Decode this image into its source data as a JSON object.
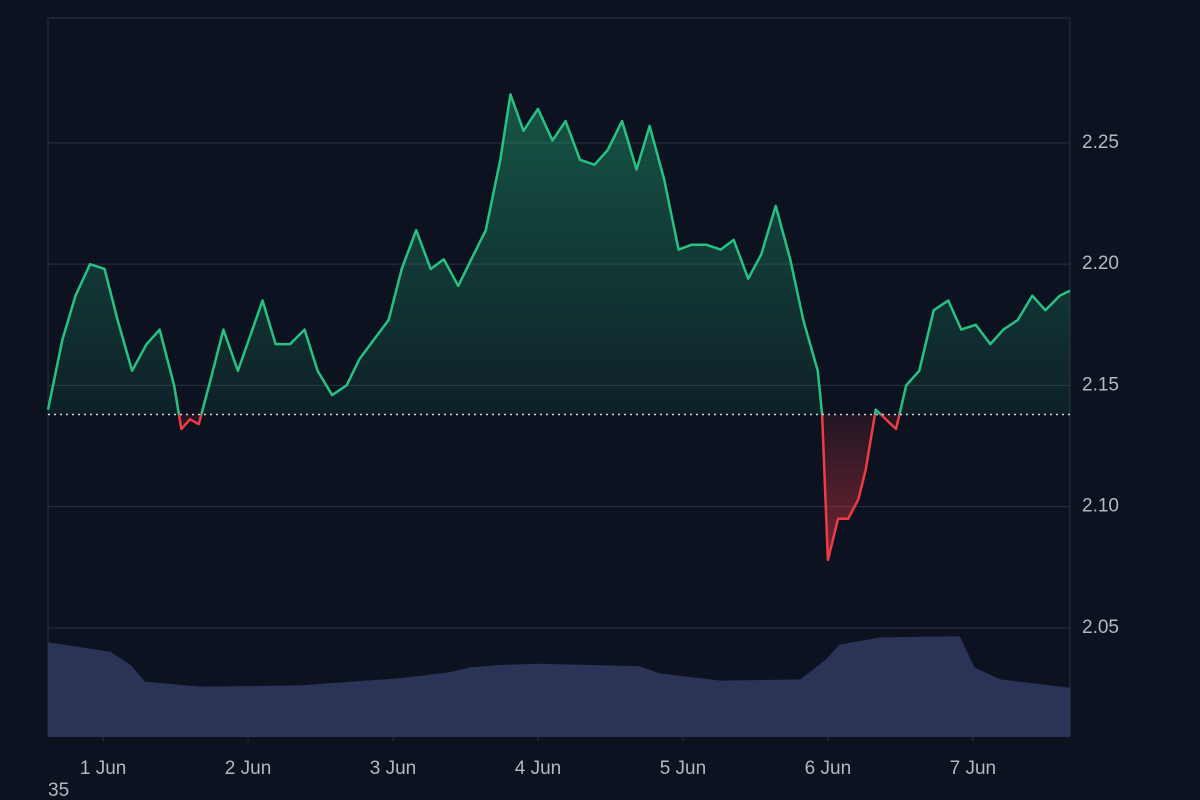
{
  "chart_data": {
    "type": "baseline",
    "xlim": [
      -0.38,
      6.67
    ],
    "xticks": [
      {
        "value": 0,
        "label": "1 Jun"
      },
      {
        "value": 1,
        "label": "2 Jun"
      },
      {
        "value": 2,
        "label": "3 Jun"
      },
      {
        "value": 3,
        "label": "4 Jun"
      },
      {
        "value": 4,
        "label": "5 Jun"
      },
      {
        "value": 5,
        "label": "6 Jun"
      },
      {
        "value": 6,
        "label": "7 Jun"
      }
    ],
    "ylim": [
      2.005,
      2.3015
    ],
    "yticks": [
      2.05,
      {
        "value": 2.1,
        "label": "2.10"
      },
      2.15,
      {
        "value": 2.2,
        "label": "2.20"
      },
      2.25
    ],
    "y2lim": [
      0,
      100
    ],
    "baseline": 2.138,
    "grid": true,
    "annotation": "35",
    "series": [
      {
        "color": "#26c281",
        "below_color": "#ef3b46",
        "x": [
          -0.38,
          -0.28,
          -0.19,
          -0.09,
          0.01,
          0.1,
          0.2,
          0.3,
          0.39,
          0.49,
          0.54,
          0.6,
          0.66,
          0.74,
          0.83,
          0.93,
          1.03,
          1.1,
          1.19,
          1.29,
          1.39,
          1.48,
          1.58,
          1.68,
          1.77,
          1.87,
          1.97,
          2.06,
          2.16,
          2.26,
          2.35,
          2.45,
          2.54,
          2.64,
          2.74,
          2.81,
          2.9,
          3.0,
          3.1,
          3.19,
          3.29,
          3.39,
          3.48,
          3.58,
          3.68,
          3.77,
          3.87,
          3.97,
          4.06,
          4.16,
          4.26,
          4.35,
          4.45,
          4.54,
          4.64,
          4.74,
          4.83,
          4.93,
          4.96,
          5.0,
          5.07,
          5.14,
          5.21,
          5.26,
          5.33,
          5.4,
          5.47,
          5.54,
          5.63,
          5.73,
          5.83,
          5.92,
          6.02,
          6.12,
          6.21,
          6.31,
          6.41,
          6.5,
          6.6,
          6.67
        ],
        "values": [
          2.14,
          2.169,
          2.187,
          2.2,
          2.198,
          2.177,
          2.156,
          2.167,
          2.173,
          2.15,
          2.132,
          2.136,
          2.134,
          2.152,
          2.173,
          2.156,
          2.173,
          2.185,
          2.167,
          2.167,
          2.173,
          2.156,
          2.146,
          2.15,
          2.161,
          2.169,
          2.177,
          2.198,
          2.214,
          2.198,
          2.202,
          2.191,
          2.202,
          2.214,
          2.243,
          2.27,
          2.255,
          2.264,
          2.251,
          2.259,
          2.243,
          2.241,
          2.247,
          2.259,
          2.239,
          2.257,
          2.235,
          2.206,
          2.208,
          2.208,
          2.206,
          2.21,
          2.194,
          2.204,
          2.224,
          2.202,
          2.177,
          2.156,
          2.138,
          2.078,
          2.095,
          2.095,
          2.103,
          2.115,
          2.14,
          2.136,
          2.132,
          2.15,
          2.156,
          2.181,
          2.185,
          2.173,
          2.175,
          2.167,
          2.173,
          2.177,
          2.187,
          2.181,
          2.187,
          2.189
        ]
      },
      {
        "axis": "y2",
        "color": "#2b3357",
        "x": [
          -0.38,
          0.05,
          0.19,
          0.29,
          0.67,
          1.36,
          2.05,
          2.39,
          2.53,
          2.74,
          3.01,
          3.7,
          3.84,
          4.26,
          4.81,
          4.98,
          5.08,
          5.36,
          5.91,
          6.01,
          6.19,
          6.67
        ],
        "values": [
          79,
          71,
          60,
          46,
          42,
          43,
          49,
          54,
          58,
          60,
          61,
          59,
          53,
          47,
          48,
          64,
          77,
          83,
          84,
          58,
          48,
          41
        ]
      }
    ]
  }
}
